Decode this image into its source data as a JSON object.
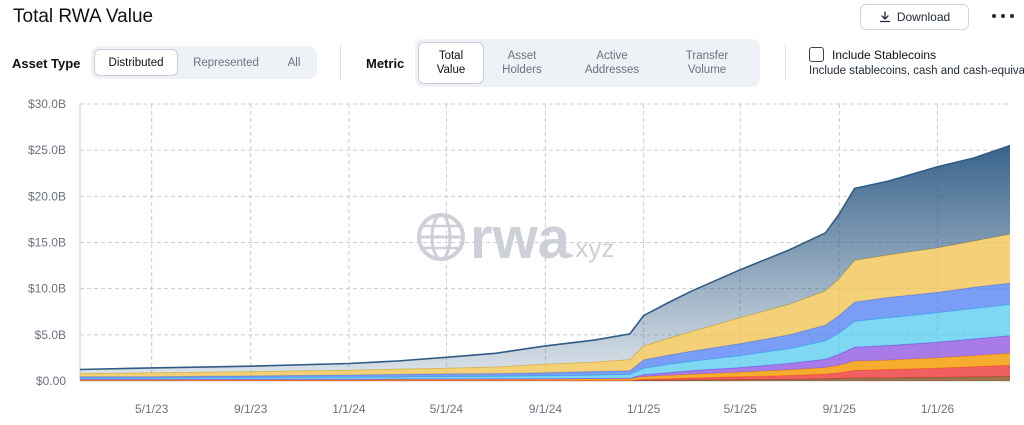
{
  "header": {
    "title": "Total RWA Value",
    "download_label": "Download"
  },
  "asset_type": {
    "label": "Asset Type",
    "options": [
      "Distributed",
      "Represented",
      "All"
    ],
    "selected": "Distributed"
  },
  "metric": {
    "label": "Metric",
    "options": [
      "Total\nValue",
      "Asset\nHolders",
      "Active\nAddresses",
      "Transfer\nVolume"
    ],
    "selected": 0
  },
  "stablecoins": {
    "label": "Include Stablecoins",
    "description": "Include stablecoins, cash and cash-equivalents",
    "checked": false
  },
  "watermark": {
    "brand": "rwa",
    "suffix": ".xyz"
  },
  "colors": {
    "grid": "#c9ccd1",
    "top_series": "#2f5b85",
    "yellow": "#f0c14b",
    "blue": "#4d7ef2",
    "cyan": "#49c6ee",
    "purple": "#8b4fe0",
    "orange": "#f59e0b",
    "red": "#ef4444",
    "brown": "#8b5a2b"
  },
  "chart_data": {
    "type": "area",
    "stacked": true,
    "xlabel": "",
    "ylabel": "",
    "ylim": [
      0,
      30
    ],
    "y_unit": "B",
    "y_ticks": [
      "$0.00",
      "$5.0B",
      "$10.0B",
      "$15.0B",
      "$20.0B",
      "$25.0B",
      "$30.0B"
    ],
    "x_ticks": [
      "5/1/23",
      "9/1/23",
      "1/1/24",
      "5/1/24",
      "9/1/24",
      "1/1/25",
      "5/1/25",
      "9/1/25",
      "1/1/26"
    ],
    "x_range": [
      "2023-02-01",
      "2026-04-01"
    ],
    "grid": true,
    "legend": "none",
    "x": [
      "2023-02-01",
      "2023-05-01",
      "2023-09-01",
      "2024-01-01",
      "2024-03-01",
      "2024-05-01",
      "2024-07-01",
      "2024-09-01",
      "2024-11-01",
      "2024-12-15",
      "2025-01-01",
      "2025-02-01",
      "2025-03-01",
      "2025-05-01",
      "2025-07-01",
      "2025-08-15",
      "2025-09-01",
      "2025-09-20",
      "2025-11-01",
      "2026-01-01",
      "2026-02-15",
      "2026-04-01"
    ],
    "series": [
      {
        "values": [
          0.05,
          0.05,
          0.05,
          0.05,
          0.05,
          0.05,
          0.05,
          0.05,
          0.05,
          0.05,
          0.08,
          0.1,
          0.12,
          0.15,
          0.2,
          0.25,
          0.3,
          0.35,
          0.35,
          0.4,
          0.45,
          0.5
        ]
      },
      {
        "values": [
          0,
          0,
          0,
          0,
          0,
          0,
          0,
          0,
          0,
          0,
          0.1,
          0.15,
          0.2,
          0.3,
          0.4,
          0.5,
          0.6,
          0.8,
          0.9,
          1.0,
          1.1,
          1.2
        ]
      },
      {
        "values": [
          0.1,
          0.1,
          0.1,
          0.1,
          0.12,
          0.12,
          0.15,
          0.15,
          0.18,
          0.2,
          0.3,
          0.35,
          0.4,
          0.5,
          0.6,
          0.7,
          0.8,
          1.0,
          1.0,
          1.1,
          1.2,
          1.3
        ]
      },
      {
        "values": [
          0.05,
          0.05,
          0.05,
          0.05,
          0.05,
          0.05,
          0.05,
          0.05,
          0.05,
          0.05,
          0.2,
          0.3,
          0.4,
          0.5,
          0.7,
          0.9,
          1.2,
          1.5,
          1.6,
          1.7,
          1.8,
          1.9
        ]
      },
      {
        "values": [
          0.1,
          0.12,
          0.15,
          0.2,
          0.2,
          0.25,
          0.25,
          0.3,
          0.35,
          0.4,
          0.7,
          0.9,
          1.0,
          1.3,
          1.6,
          2.0,
          2.3,
          2.8,
          3.0,
          3.2,
          3.3,
          3.4
        ]
      },
      {
        "values": [
          0.15,
          0.15,
          0.2,
          0.25,
          0.3,
          0.3,
          0.3,
          0.35,
          0.4,
          0.4,
          0.9,
          1.0,
          1.1,
          1.3,
          1.5,
          1.7,
          1.9,
          2.1,
          2.2,
          2.2,
          2.3,
          2.3
        ]
      },
      {
        "values": [
          0.35,
          0.4,
          0.45,
          0.5,
          0.55,
          0.6,
          0.7,
          0.9,
          1.0,
          1.2,
          1.5,
          1.8,
          2.1,
          2.8,
          3.3,
          3.7,
          4.0,
          4.5,
          4.6,
          4.8,
          5.0,
          5.3
        ]
      },
      {
        "values": [
          0.45,
          0.55,
          0.6,
          0.75,
          0.9,
          1.2,
          1.5,
          2.0,
          2.4,
          2.8,
          3.3,
          3.9,
          4.4,
          5.2,
          5.9,
          6.3,
          7.0,
          7.8,
          8.0,
          8.8,
          9.0,
          9.6
        ]
      }
    ]
  }
}
